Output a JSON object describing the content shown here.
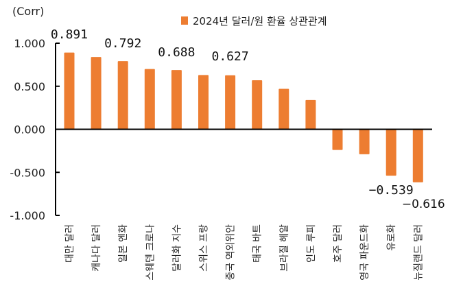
{
  "chart_data": {
    "type": "bar",
    "title": "",
    "unit_label": "(Corr)",
    "legend": {
      "entries": [
        "2024년 달러/원 환율 상관관계"
      ],
      "placement": "top-right"
    },
    "categories": [
      "대만 달러",
      "캐나다 달러",
      "일본 엔화",
      "스웨덴 크로나",
      "달러화 지수",
      "스위스 프랑",
      "중국 역외위안",
      "태국 바트",
      "브라질 헤알",
      "인도 루피",
      "호주 달러",
      "영국 파운드화",
      "유로화",
      "뉴질랜드 달러"
    ],
    "series": [
      {
        "name": "2024년 달러/원 환율 상관관계",
        "values": [
          0.891,
          0.84,
          0.792,
          0.7,
          0.688,
          0.63,
          0.627,
          0.57,
          0.47,
          0.34,
          -0.24,
          -0.29,
          -0.539,
          -0.616
        ],
        "color": "#ED7D31"
      }
    ],
    "data_labels": [
      {
        "index": 0,
        "text": "0.891"
      },
      {
        "index": 2,
        "text": "0.792"
      },
      {
        "index": 4,
        "text": "0.688"
      },
      {
        "index": 6,
        "text": "0.627"
      },
      {
        "index": 12,
        "text": "−0.539"
      },
      {
        "index": 13,
        "text": "−0.616"
      }
    ],
    "y_ticks": [
      "1.000",
      "0.500",
      "0.000",
      "-0.500",
      "-1.000"
    ],
    "y_tick_values": [
      1.0,
      0.5,
      0.0,
      -0.5,
      -1.0
    ],
    "ylim": [
      -1.0,
      1.0
    ],
    "xlabel": "",
    "ylabel": "",
    "grid": false
  }
}
